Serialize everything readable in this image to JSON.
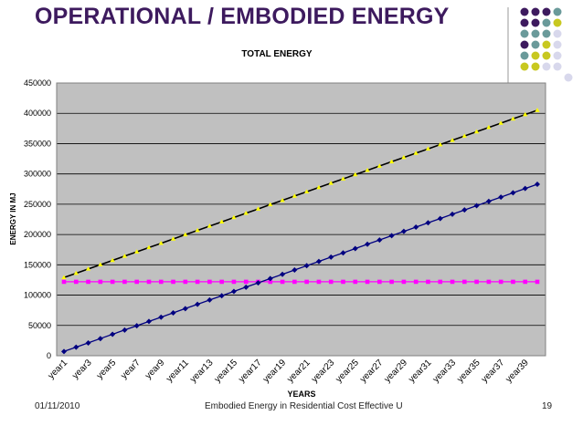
{
  "slide": {
    "title": "OPERATIONAL / EMBODIED ENERGY",
    "footer_date": "01/11/2010",
    "footer_text": "Embodied Energy in Residential Cost Effective U",
    "page_number": "19"
  },
  "decor": {
    "dot_colors": [
      "#3d1a5e",
      "#6a9a9a",
      "#c8c820",
      "#d8d8ec"
    ]
  },
  "chart_data": {
    "type": "line",
    "title": "TOTAL ENERGY",
    "xlabel": "YEARS",
    "ylabel": "ENERGY IN MJ",
    "ylim": [
      0,
      450000
    ],
    "yticks": [
      0,
      50000,
      100000,
      150000,
      200000,
      250000,
      300000,
      350000,
      400000,
      450000
    ],
    "x_count": 40,
    "x_label_prefix": "year",
    "x_label_step": 2,
    "plot_background": "#c0c0c0",
    "series": [
      {
        "key": "embodied",
        "color": "#ff00ff",
        "marker": "square",
        "start": 122000,
        "end": 122000
      },
      {
        "key": "operational",
        "color": "#000080",
        "marker": "diamond",
        "start": 7000,
        "end": 283000
      },
      {
        "key": "total",
        "color": "#000000",
        "marker": "triangle",
        "marker_color": "#ffff00",
        "start": 129000,
        "end": 405000
      }
    ]
  }
}
